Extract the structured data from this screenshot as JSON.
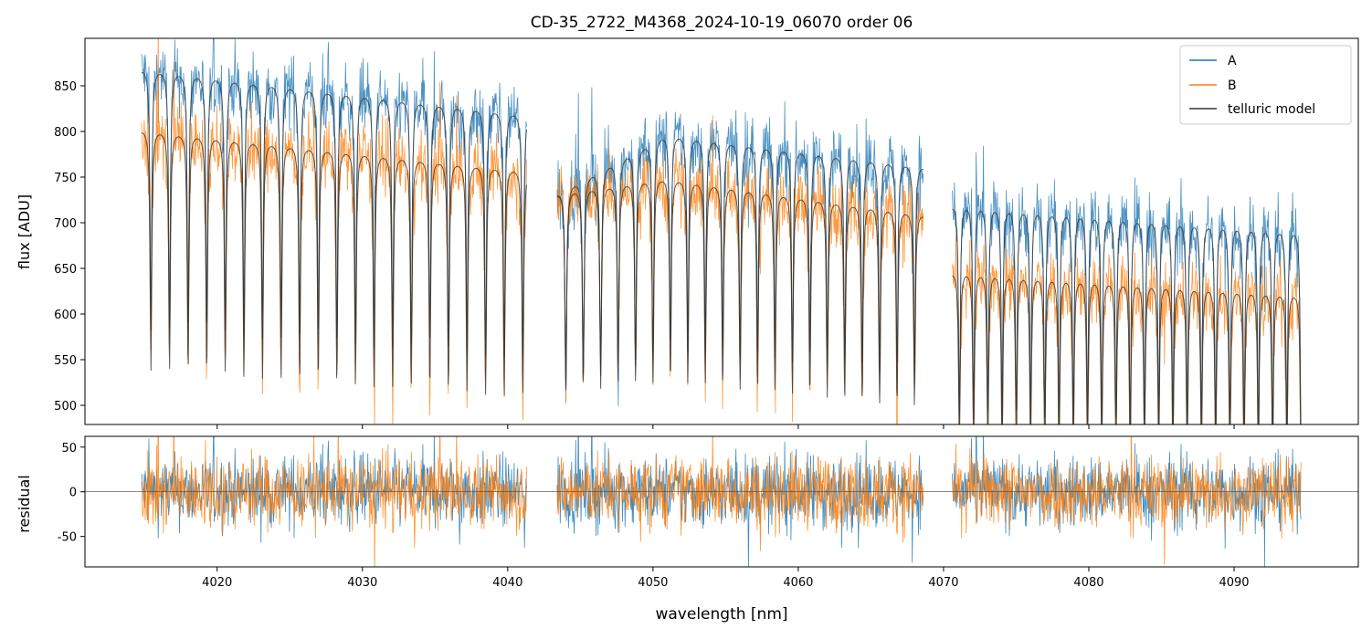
{
  "chart_data": {
    "type": "line",
    "title": "CD-35_2722_M4368_2024-10-19_06070  order 06",
    "xlabel": "wavelength [nm]",
    "xlim": [
      4010.9,
      4098.55
    ],
    "xticks": [
      4020,
      4030,
      4040,
      4050,
      4060,
      4070,
      4080,
      4090
    ],
    "panels": [
      {
        "name": "flux",
        "ylabel": "flux [ADU]",
        "ylim": [
          479,
          902
        ],
        "yticks": [
          500,
          550,
          600,
          650,
          700,
          750,
          800,
          850
        ]
      },
      {
        "name": "residual",
        "ylabel": "residual",
        "ylim": [
          -84,
          62
        ],
        "yticks": [
          -50,
          0,
          50
        ],
        "zero_line": true
      }
    ],
    "legend": {
      "placement": "top-right",
      "entries": [
        {
          "label": "A",
          "color": "#1f77b4"
        },
        {
          "label": "B",
          "color": "#ff7f0e"
        },
        {
          "label": "telluric model",
          "color": "#333333"
        }
      ]
    },
    "series": [
      {
        "name": "A",
        "color": "#1f77b4",
        "segments": [
          {
            "x": [
              4014.8,
              4041.3
            ],
            "continuum": [
              872,
              822
            ],
            "line_spacing_nm": 1.28,
            "line_depth": 0.33
          },
          {
            "x": [
              4043.4,
              4068.6
            ],
            "continuum": [
              735,
              800,
              765
            ],
            "line_spacing_nm": 1.2,
            "line_depth": 0.3
          },
          {
            "x": [
              4070.6,
              4094.6
            ],
            "continuum": [
              725,
              695
            ],
            "line_spacing_nm": 0.98,
            "line_depth": 0.33
          }
        ],
        "residual_noise_std": 20
      },
      {
        "name": "B",
        "color": "#ff7f0e",
        "segments": [
          {
            "x": [
              4014.8,
              4041.3
            ],
            "continuum": [
              805,
              760
            ],
            "line_spacing_nm": 1.28,
            "line_depth": 0.33
          },
          {
            "x": [
              4043.4,
              4068.6
            ],
            "continuum": [
              735,
              752,
              712
            ],
            "line_spacing_nm": 1.2,
            "line_depth": 0.3
          },
          {
            "x": [
              4070.6,
              4094.6
            ],
            "continuum": [
              650,
              625
            ],
            "line_spacing_nm": 0.98,
            "line_depth": 0.3
          }
        ],
        "residual_noise_std": 20
      }
    ]
  }
}
